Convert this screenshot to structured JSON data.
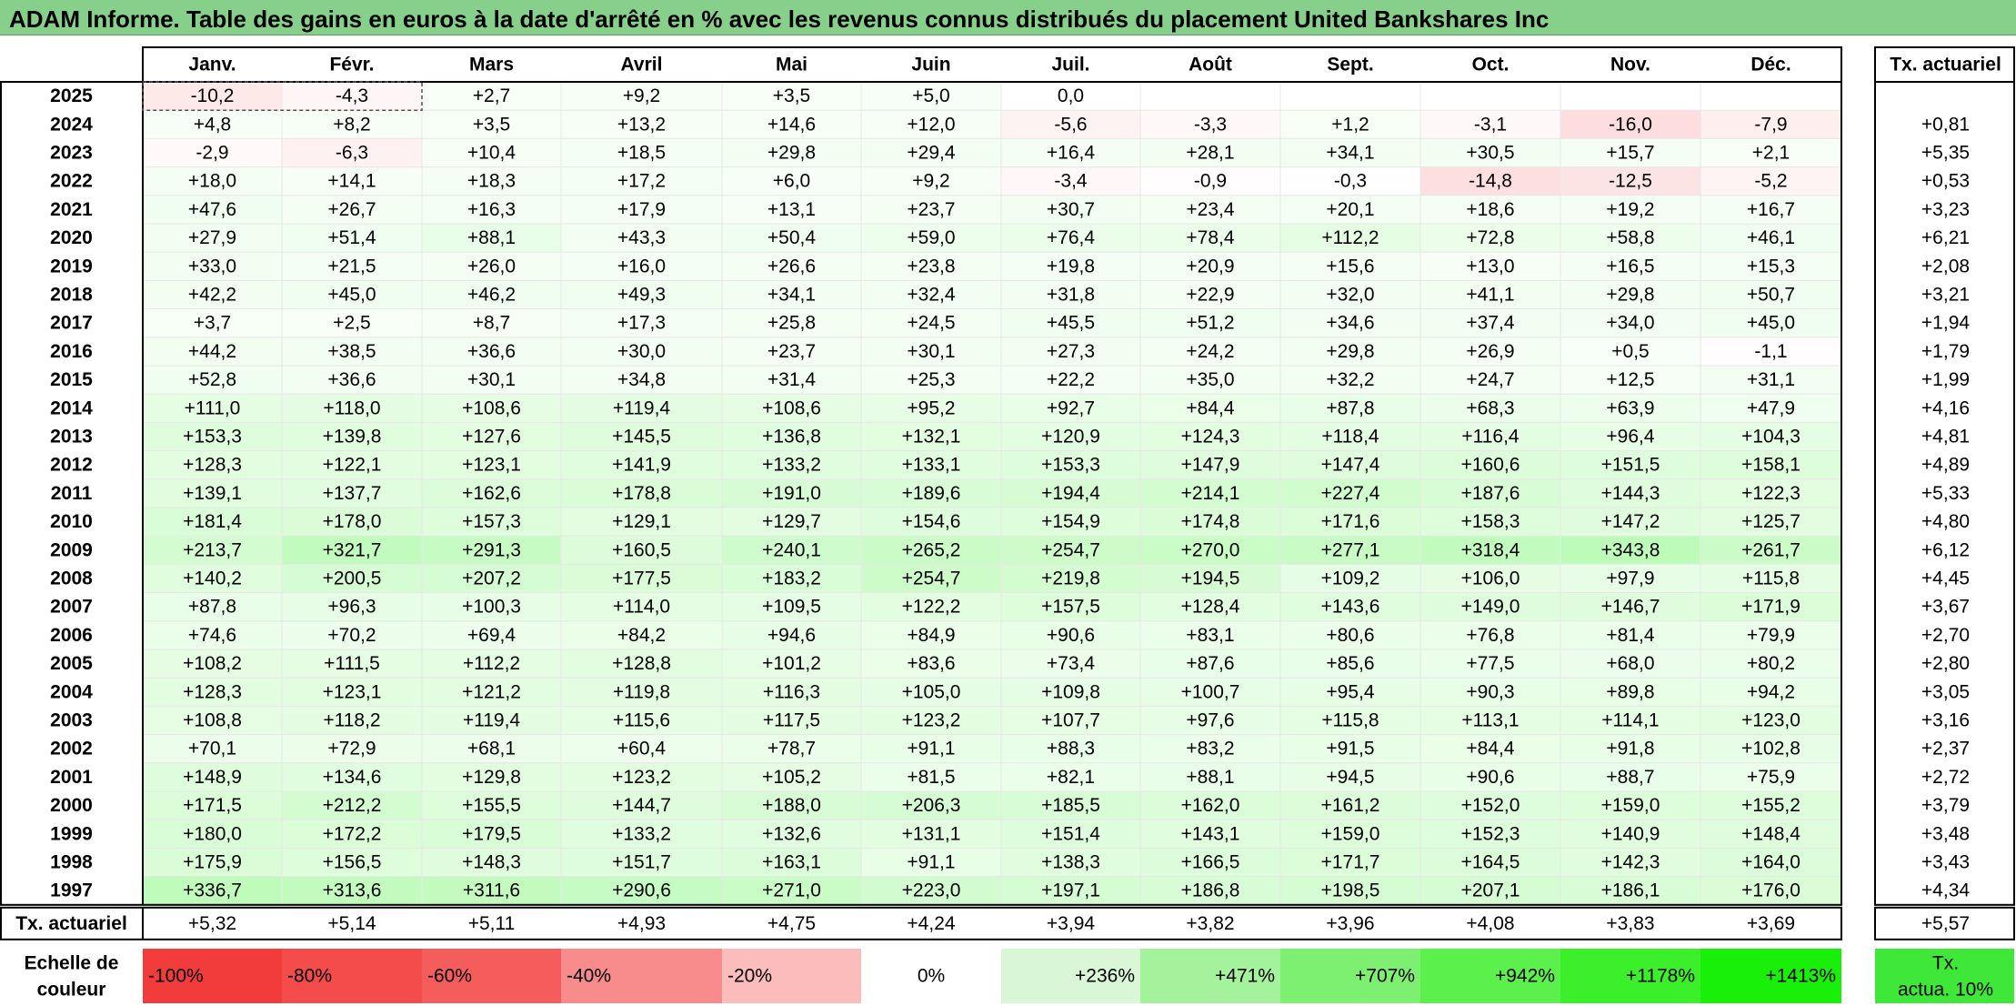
{
  "title": "ADAM Informe. Table des gains en euros à la date d'arrêté en % avec les revenus connus distribués du placement United Bankshares Inc",
  "chart_data": {
    "type": "heatmap",
    "months": [
      "Janv.",
      "Févr.",
      "Mars",
      "Avril",
      "Mai",
      "Juin",
      "Juil.",
      "Août",
      "Sept.",
      "Oct.",
      "Nov.",
      "Déc."
    ],
    "rate_header": "Tx. actuariel",
    "rows": [
      {
        "year": "2025",
        "values": [
          "-10,2",
          "-4,3",
          "+2,7",
          "+9,2",
          "+3,5",
          "+5,0",
          "0,0",
          "",
          "",
          "",
          "",
          ""
        ],
        "rate": ""
      },
      {
        "year": "2024",
        "values": [
          "+4,8",
          "+8,2",
          "+3,5",
          "+13,2",
          "+14,6",
          "+12,0",
          "-5,6",
          "-3,3",
          "+1,2",
          "-3,1",
          "-16,0",
          "-7,9"
        ],
        "rate": "+0,81"
      },
      {
        "year": "2023",
        "values": [
          "-2,9",
          "-6,3",
          "+10,4",
          "+18,5",
          "+29,8",
          "+29,4",
          "+16,4",
          "+28,1",
          "+34,1",
          "+30,5",
          "+15,7",
          "+2,1"
        ],
        "rate": "+5,35"
      },
      {
        "year": "2022",
        "values": [
          "+18,0",
          "+14,1",
          "+18,3",
          "+17,2",
          "+6,0",
          "+9,2",
          "-3,4",
          "-0,9",
          "-0,3",
          "-14,8",
          "-12,5",
          "-5,2"
        ],
        "rate": "+0,53"
      },
      {
        "year": "2021",
        "values": [
          "+47,6",
          "+26,7",
          "+16,3",
          "+17,9",
          "+13,1",
          "+23,7",
          "+30,7",
          "+23,4",
          "+20,1",
          "+18,6",
          "+19,2",
          "+16,7"
        ],
        "rate": "+3,23"
      },
      {
        "year": "2020",
        "values": [
          "+27,9",
          "+51,4",
          "+88,1",
          "+43,3",
          "+50,4",
          "+59,0",
          "+76,4",
          "+78,4",
          "+112,2",
          "+72,8",
          "+58,8",
          "+46,1"
        ],
        "rate": "+6,21"
      },
      {
        "year": "2019",
        "values": [
          "+33,0",
          "+21,5",
          "+26,0",
          "+16,0",
          "+26,6",
          "+23,8",
          "+19,8",
          "+20,9",
          "+15,6",
          "+13,0",
          "+16,5",
          "+15,3"
        ],
        "rate": "+2,08"
      },
      {
        "year": "2018",
        "values": [
          "+42,2",
          "+45,0",
          "+46,2",
          "+49,3",
          "+34,1",
          "+32,4",
          "+31,8",
          "+22,9",
          "+32,0",
          "+41,1",
          "+29,8",
          "+50,7"
        ],
        "rate": "+3,21"
      },
      {
        "year": "2017",
        "values": [
          "+3,7",
          "+2,5",
          "+8,7",
          "+17,3",
          "+25,8",
          "+24,5",
          "+45,5",
          "+51,2",
          "+34,6",
          "+37,4",
          "+34,0",
          "+45,0"
        ],
        "rate": "+1,94"
      },
      {
        "year": "2016",
        "values": [
          "+44,2",
          "+38,5",
          "+36,6",
          "+30,0",
          "+23,7",
          "+30,1",
          "+27,3",
          "+24,2",
          "+29,8",
          "+26,9",
          "+0,5",
          "-1,1"
        ],
        "rate": "+1,79"
      },
      {
        "year": "2015",
        "values": [
          "+52,8",
          "+36,6",
          "+30,1",
          "+34,8",
          "+31,4",
          "+25,3",
          "+22,2",
          "+35,0",
          "+32,2",
          "+24,7",
          "+12,5",
          "+31,1"
        ],
        "rate": "+1,99"
      },
      {
        "year": "2014",
        "values": [
          "+111,0",
          "+118,0",
          "+108,6",
          "+119,4",
          "+108,6",
          "+95,2",
          "+92,7",
          "+84,4",
          "+87,8",
          "+68,3",
          "+63,9",
          "+47,9"
        ],
        "rate": "+4,16"
      },
      {
        "year": "2013",
        "values": [
          "+153,3",
          "+139,8",
          "+127,6",
          "+145,5",
          "+136,8",
          "+132,1",
          "+120,9",
          "+124,3",
          "+118,4",
          "+116,4",
          "+96,4",
          "+104,3"
        ],
        "rate": "+4,81"
      },
      {
        "year": "2012",
        "values": [
          "+128,3",
          "+122,1",
          "+123,1",
          "+141,9",
          "+133,2",
          "+133,1",
          "+153,3",
          "+147,9",
          "+147,4",
          "+160,6",
          "+151,5",
          "+158,1"
        ],
        "rate": "+4,89"
      },
      {
        "year": "2011",
        "values": [
          "+139,1",
          "+137,7",
          "+162,6",
          "+178,8",
          "+191,0",
          "+189,6",
          "+194,4",
          "+214,1",
          "+227,4",
          "+187,6",
          "+144,3",
          "+122,3"
        ],
        "rate": "+5,33"
      },
      {
        "year": "2010",
        "values": [
          "+181,4",
          "+178,0",
          "+157,3",
          "+129,1",
          "+129,7",
          "+154,6",
          "+154,9",
          "+174,8",
          "+171,6",
          "+158,3",
          "+147,2",
          "+125,7"
        ],
        "rate": "+4,80"
      },
      {
        "year": "2009",
        "values": [
          "+213,7",
          "+321,7",
          "+291,3",
          "+160,5",
          "+240,1",
          "+265,2",
          "+254,7",
          "+270,0",
          "+277,1",
          "+318,4",
          "+343,8",
          "+261,7"
        ],
        "rate": "+6,12"
      },
      {
        "year": "2008",
        "values": [
          "+140,2",
          "+200,5",
          "+207,2",
          "+177,5",
          "+183,2",
          "+254,7",
          "+219,8",
          "+194,5",
          "+109,2",
          "+106,0",
          "+97,9",
          "+115,8"
        ],
        "rate": "+4,45"
      },
      {
        "year": "2007",
        "values": [
          "+87,8",
          "+96,3",
          "+100,3",
          "+114,0",
          "+109,5",
          "+122,2",
          "+157,5",
          "+128,4",
          "+143,6",
          "+149,0",
          "+146,7",
          "+171,9"
        ],
        "rate": "+3,67"
      },
      {
        "year": "2006",
        "values": [
          "+74,6",
          "+70,2",
          "+69,4",
          "+84,2",
          "+94,6",
          "+84,9",
          "+90,6",
          "+83,1",
          "+80,6",
          "+76,8",
          "+81,4",
          "+79,9"
        ],
        "rate": "+2,70"
      },
      {
        "year": "2005",
        "values": [
          "+108,2",
          "+111,5",
          "+112,2",
          "+128,8",
          "+101,2",
          "+83,6",
          "+73,4",
          "+87,6",
          "+85,6",
          "+77,5",
          "+68,0",
          "+80,2"
        ],
        "rate": "+2,80"
      },
      {
        "year": "2004",
        "values": [
          "+128,3",
          "+123,1",
          "+121,2",
          "+119,8",
          "+116,3",
          "+105,0",
          "+109,8",
          "+100,7",
          "+95,4",
          "+90,3",
          "+89,8",
          "+94,2"
        ],
        "rate": "+3,05"
      },
      {
        "year": "2003",
        "values": [
          "+108,8",
          "+118,2",
          "+119,4",
          "+115,6",
          "+117,5",
          "+123,2",
          "+107,7",
          "+97,6",
          "+115,8",
          "+113,1",
          "+114,1",
          "+123,0"
        ],
        "rate": "+3,16"
      },
      {
        "year": "2002",
        "values": [
          "+70,1",
          "+72,9",
          "+68,1",
          "+60,4",
          "+78,7",
          "+91,1",
          "+88,3",
          "+83,2",
          "+91,5",
          "+84,4",
          "+91,8",
          "+102,8"
        ],
        "rate": "+2,37"
      },
      {
        "year": "2001",
        "values": [
          "+148,9",
          "+134,6",
          "+129,8",
          "+123,2",
          "+105,2",
          "+81,5",
          "+82,1",
          "+88,1",
          "+94,5",
          "+90,6",
          "+88,7",
          "+75,9"
        ],
        "rate": "+2,72"
      },
      {
        "year": "2000",
        "values": [
          "+171,5",
          "+212,2",
          "+155,5",
          "+144,7",
          "+188,0",
          "+206,3",
          "+185,5",
          "+162,0",
          "+161,2",
          "+152,0",
          "+159,0",
          "+155,2"
        ],
        "rate": "+3,79"
      },
      {
        "year": "1999",
        "values": [
          "+180,0",
          "+172,2",
          "+179,5",
          "+133,2",
          "+132,6",
          "+131,1",
          "+151,4",
          "+143,1",
          "+159,0",
          "+152,3",
          "+140,9",
          "+148,4"
        ],
        "rate": "+3,48"
      },
      {
        "year": "1998",
        "values": [
          "+175,9",
          "+156,5",
          "+148,3",
          "+151,7",
          "+163,1",
          "+91,1",
          "+138,3",
          "+166,5",
          "+171,7",
          "+164,5",
          "+142,3",
          "+164,0"
        ],
        "rate": "+3,43"
      },
      {
        "year": "1997",
        "values": [
          "+336,7",
          "+313,6",
          "+311,6",
          "+290,6",
          "+271,0",
          "+223,0",
          "+197,1",
          "+186,8",
          "+198,5",
          "+207,1",
          "+186,1",
          "+176,0"
        ],
        "rate": "+4,34"
      }
    ],
    "footer": {
      "label": "Tx. actuariel",
      "values": [
        "+5,32",
        "+5,14",
        "+5,11",
        "+4,93",
        "+4,75",
        "+4,24",
        "+3,94",
        "+3,82",
        "+3,96",
        "+4,08",
        "+3,83",
        "+3,69"
      ],
      "rate": "+5,57"
    },
    "scale": {
      "label_line1": "Echelle de",
      "label_line2": "couleur",
      "items": [
        {
          "label": "-100%",
          "color": "#f23b3b"
        },
        {
          "label": "-80%",
          "color": "#f44b4b"
        },
        {
          "label": "-60%",
          "color": "#f55c5c"
        },
        {
          "label": "-40%",
          "color": "#f88c8c"
        },
        {
          "label": "-20%",
          "color": "#fbbcbc"
        },
        {
          "label": "0%",
          "color": "#ffffff"
        },
        {
          "label": "+236%",
          "color": "#d9f7d6"
        },
        {
          "label": "+471%",
          "color": "#a5f29c"
        },
        {
          "label": "+707%",
          "color": "#7ef071"
        },
        {
          "label": "+942%",
          "color": "#5cf04c"
        },
        {
          "label": "+1178%",
          "color": "#3bf02a"
        },
        {
          "label": "+1413%",
          "color": "#19f00a"
        }
      ],
      "rate_label_line1": "Tx.",
      "rate_label_line2": "actua. 10%",
      "rate_color": "#3fe838"
    },
    "colors": {
      "title_bar": "#86d08b",
      "negative_max": "#f23b3b",
      "positive_max": "#19f00a"
    }
  }
}
